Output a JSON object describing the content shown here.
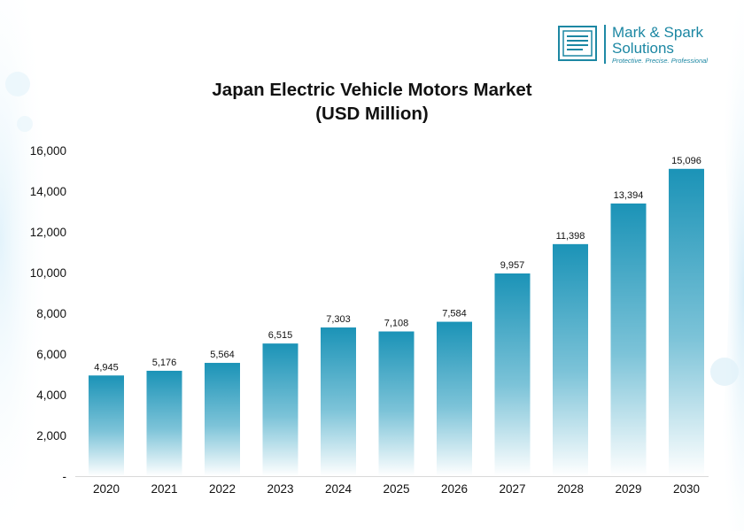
{
  "branding": {
    "name_line1": "Mark & Spark",
    "name_line2": "Solutions",
    "tagline": "Protective. Precise. Professional",
    "color": "#1c87a3"
  },
  "chart_data": {
    "type": "bar",
    "title_line1": "Japan Electric Vehicle Motors Market",
    "title_line2": "(USD Million)",
    "categories": [
      "2020",
      "2021",
      "2022",
      "2023",
      "2024",
      "2025",
      "2026",
      "2027",
      "2028",
      "2029",
      "2030"
    ],
    "values": [
      4945,
      5176,
      5564,
      6515,
      7303,
      7108,
      7584,
      9957,
      11398,
      13394,
      15096
    ],
    "value_labels": [
      "4,945",
      "5,176",
      "5,564",
      "6,515",
      "7,303",
      "7,108",
      "7,584",
      "9,957",
      "11,398",
      "13,394",
      "15,096"
    ],
    "y_ticks": [
      0,
      2000,
      4000,
      6000,
      8000,
      10000,
      12000,
      14000,
      16000
    ],
    "y_tick_labels": [
      "-",
      "2,000",
      "4,000",
      "6,000",
      "8,000",
      "10,000",
      "12,000",
      "14,000",
      "16,000"
    ],
    "ylim": [
      0,
      16000
    ],
    "grid": false,
    "legend": "none",
    "bar_color_top": "#1b93b7",
    "bar_color_bottom": "#ffffff"
  }
}
